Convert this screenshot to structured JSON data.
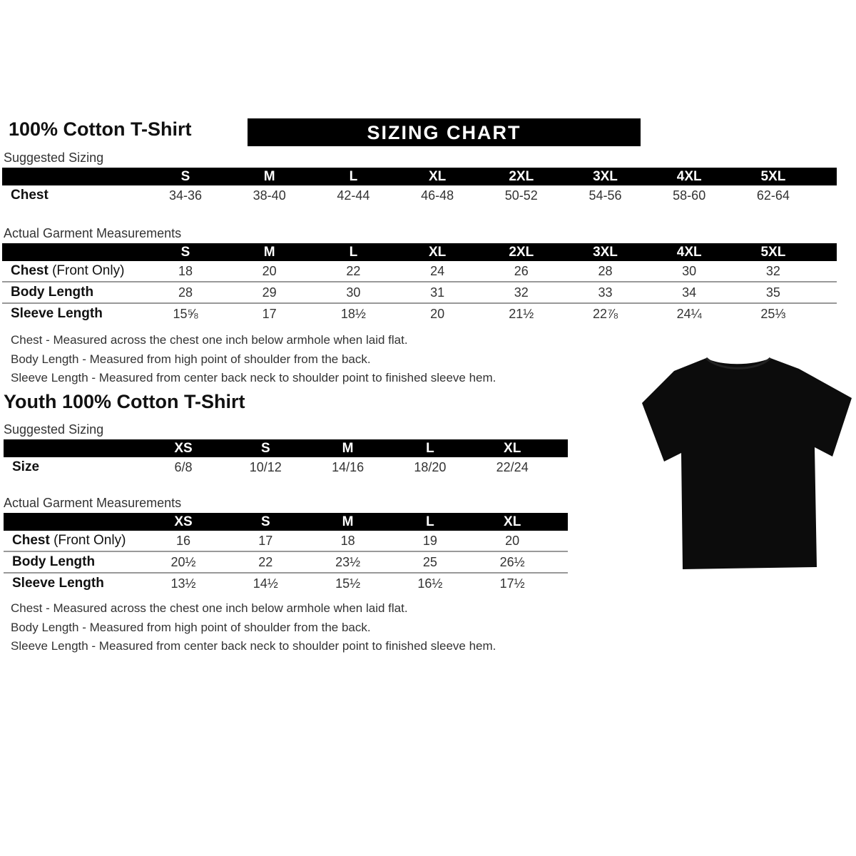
{
  "adult": {
    "title": "100% Cotton T-Shirt",
    "banner": "SIZING CHART",
    "suggested": {
      "label": "Suggested Sizing",
      "sizes": [
        "S",
        "M",
        "L",
        "XL",
        "2XL",
        "3XL",
        "4XL",
        "5XL"
      ],
      "rows": [
        {
          "label": "Chest",
          "note": "",
          "values": [
            "34-36",
            "38-40",
            "42-44",
            "46-48",
            "50-52",
            "54-56",
            "58-60",
            "62-64"
          ]
        }
      ]
    },
    "actual": {
      "label": "Actual Garment Measurements",
      "sizes": [
        "S",
        "M",
        "L",
        "XL",
        "2XL",
        "3XL",
        "4XL",
        "5XL"
      ],
      "rows": [
        {
          "label": "Chest",
          "note": " (Front Only)",
          "values": [
            "18",
            "20",
            "22",
            "24",
            "26",
            "28",
            "30",
            "32"
          ]
        },
        {
          "label": "Body Length",
          "note": "",
          "values": [
            "28",
            "29",
            "30",
            "31",
            "32",
            "33",
            "34",
            "35"
          ]
        },
        {
          "label": "Sleeve Length",
          "note": "",
          "values": [
            "15⅝",
            "17",
            "18½",
            "20",
            "21½",
            "22⅞",
            "24¼",
            "25⅓"
          ]
        }
      ]
    },
    "notes": [
      "Chest - Measured across the chest one inch below armhole when laid flat.",
      "Body Length - Measured from high point of shoulder from the back.",
      "Sleeve Length - Measured from center back neck to shoulder point to finished sleeve hem."
    ]
  },
  "youth": {
    "title": "Youth 100% Cotton T-Shirt",
    "suggested": {
      "label": "Suggested Sizing",
      "sizes": [
        "XS",
        "S",
        "M",
        "L",
        "XL"
      ],
      "rows": [
        {
          "label": "Size",
          "note": "",
          "values": [
            "6/8",
            "10/12",
            "14/16",
            "18/20",
            "22/24"
          ]
        }
      ]
    },
    "actual": {
      "label": "Actual Garment Measurements",
      "sizes": [
        "XS",
        "S",
        "M",
        "L",
        "XL"
      ],
      "rows": [
        {
          "label": "Chest",
          "note": " (Front Only)",
          "values": [
            "16",
            "17",
            "18",
            "19",
            "20"
          ]
        },
        {
          "label": "Body Length",
          "note": "",
          "values": [
            "20½",
            "22",
            "23½",
            "25",
            "26½"
          ]
        },
        {
          "label": "Sleeve Length",
          "note": "",
          "values": [
            "13½",
            "14½",
            "15½",
            "16½",
            "17½"
          ]
        }
      ]
    },
    "notes": [
      "Chest - Measured across the chest one inch below armhole when laid flat.",
      "Body Length - Measured from high point of shoulder from the back.",
      "Sleeve Length - Measured from center back neck to shoulder point to finished sleeve hem."
    ]
  },
  "image": {
    "icon": "black-tshirt",
    "color": "#000000"
  }
}
